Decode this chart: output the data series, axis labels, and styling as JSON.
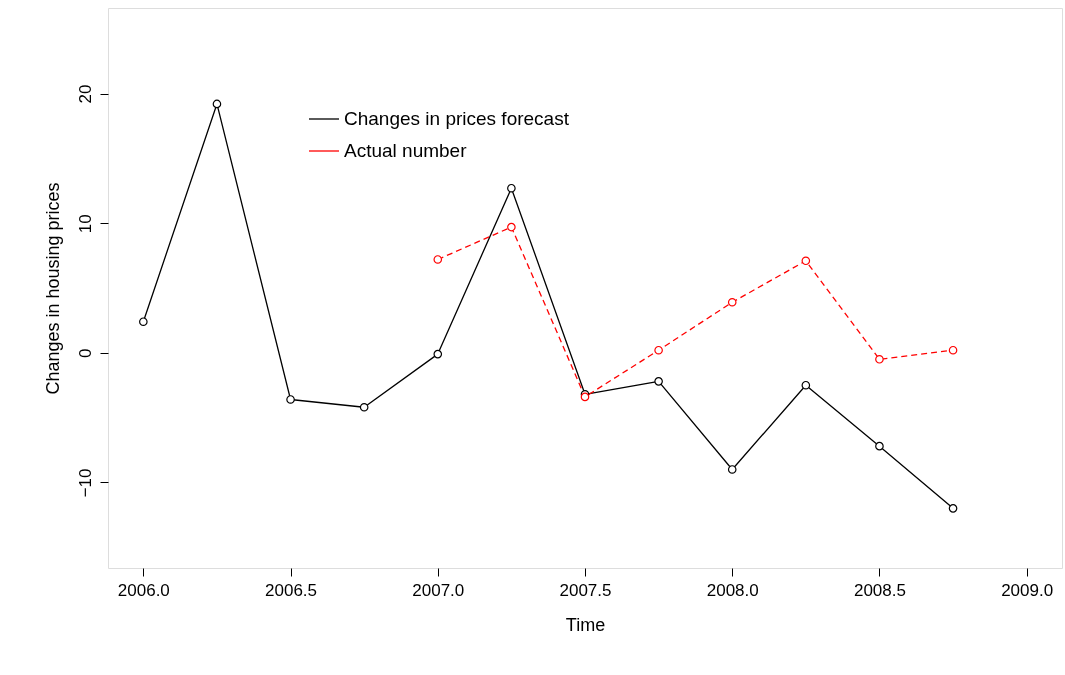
{
  "chart_data": {
    "type": "line",
    "xlabel": "Time",
    "ylabel": "Changes in housing prices",
    "xlim": [
      2005.88,
      2009.12
    ],
    "ylim": [
      -16.6,
      26.6
    ],
    "xticks": [
      {
        "value": 2006,
        "label": "2006.0"
      },
      {
        "value": 2006.5,
        "label": "2006.5"
      },
      {
        "value": 2007,
        "label": "2007.0"
      },
      {
        "value": 2007.5,
        "label": "2007.5"
      },
      {
        "value": 2008,
        "label": "2008.0"
      },
      {
        "value": 2008.5,
        "label": "2008.5"
      },
      {
        "value": 2009,
        "label": "2009.0"
      }
    ],
    "yticks": [
      -10,
      0,
      10,
      20
    ],
    "series": [
      {
        "name": "Changes in prices forecast",
        "color": "#000000",
        "line_style": "solid",
        "x": [
          2006.0,
          2006.25,
          2006.5,
          2006.75,
          2007.0,
          2007.25,
          2007.5,
          2007.75,
          2008.0,
          2008.25,
          2008.5,
          2008.75
        ],
        "values": [
          2.4,
          19.2,
          -3.6,
          -4.2,
          -0.1,
          12.7,
          -3.2,
          -2.2,
          -9.0,
          -2.5,
          -7.2,
          -12.0
        ]
      },
      {
        "name": "Actual number",
        "color": "#ff0000",
        "line_style": "dashed",
        "x": [
          2007.0,
          2007.25,
          2007.5,
          2007.75,
          2008.0,
          2008.25,
          2008.5,
          2008.75
        ],
        "values": [
          7.2,
          9.7,
          -3.4,
          0.2,
          3.9,
          7.1,
          -0.5,
          0.2
        ]
      }
    ],
    "marker": "circle",
    "grid": false,
    "legend": "top"
  }
}
